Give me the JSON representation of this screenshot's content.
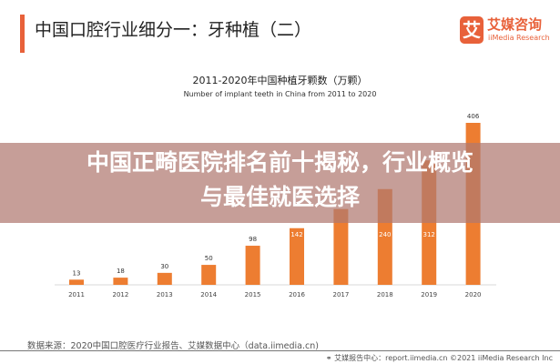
{
  "header": {
    "title": "中国口腔行业细分一：牙种植（二）",
    "accent_color": "#e8613a"
  },
  "logo": {
    "glyph": "艾",
    "name_cn": "艾媒咨询",
    "name_en": "iiMedia Research"
  },
  "chart_data": {
    "type": "bar",
    "title": "2011-2020年中国种植牙颗数（万颗）",
    "subtitle": "Number of implant teeth in China from 2011 to 2020",
    "categories": [
      "2011",
      "2012",
      "2013",
      "2014",
      "2015",
      "2016",
      "2017",
      "2018",
      "2019",
      "2020"
    ],
    "values": [
      13,
      18,
      30,
      50,
      98,
      142,
      190,
      240,
      312,
      406
    ],
    "labels": [
      "13",
      "18",
      "30",
      "50",
      "98",
      "142",
      "",
      "240",
      "312",
      "406"
    ],
    "bar_color": "#ed7d31",
    "ylim": [
      0,
      406
    ],
    "grid": false,
    "legend": "none"
  },
  "overlay": {
    "line1": "中国正畸医院排名前十揭秘，行业概览",
    "line2": "与最佳就医选择"
  },
  "source": "数据来源：2020中国口腔医疗行业报告、艾媒数据中心（data.iimedia.cn)",
  "footer": "艾媒报告中心：report.iimedia.cn   ©2021  iiMedia Research  Inc",
  "footer_icon": "globe-icon"
}
